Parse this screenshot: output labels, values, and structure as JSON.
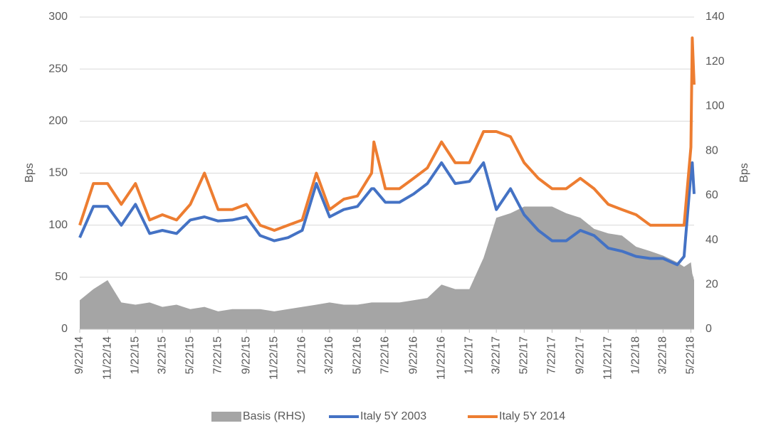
{
  "chart_data": {
    "type": "line",
    "y_label": "Bps",
    "y2_label": "Bps",
    "x": [
      "9/22/14",
      "10/22/14",
      "11/22/14",
      "12/22/14",
      "1/22/15",
      "2/22/15",
      "3/22/15",
      "4/22/15",
      "5/22/15",
      "6/22/15",
      "7/22/15",
      "8/22/15",
      "9/22/15",
      "10/22/15",
      "11/22/15",
      "12/22/15",
      "1/22/16",
      "2/22/16",
      "3/22/16",
      "4/22/16",
      "5/22/16",
      "6/22/16",
      "6/27/16",
      "7/22/16",
      "8/22/16",
      "9/22/16",
      "10/22/16",
      "11/22/16",
      "12/22/16",
      "1/22/17",
      "2/22/17",
      "3/22/17",
      "4/22/17",
      "5/22/17",
      "6/22/17",
      "7/22/17",
      "8/22/17",
      "9/22/17",
      "10/22/17",
      "11/22/17",
      "12/22/17",
      "1/22/18",
      "2/22/18",
      "3/22/18",
      "4/22/18",
      "5/7/18",
      "5/22/18",
      "5/25/18",
      "5/29/18"
    ],
    "xlim": [
      "9/22/14",
      "5/29/18"
    ],
    "xticks": [
      "9/22/14",
      "11/22/14",
      "1/22/15",
      "3/22/15",
      "5/22/15",
      "7/22/15",
      "9/22/15",
      "11/22/15",
      "1/22/16",
      "3/22/16",
      "5/22/16",
      "7/22/16",
      "9/22/16",
      "11/22/16",
      "1/22/17",
      "3/22/17",
      "5/22/17",
      "7/22/17",
      "9/22/17",
      "11/22/17",
      "1/22/18",
      "3/22/18",
      "5/22/18"
    ],
    "ylim": [
      0,
      300
    ],
    "yticks": [
      0,
      50,
      100,
      150,
      200,
      250,
      300
    ],
    "y2lim": [
      0,
      140
    ],
    "y2ticks": [
      0,
      20,
      40,
      60,
      80,
      100,
      120,
      140
    ],
    "grid": true,
    "legend": "bottom",
    "series": [
      {
        "name": "Basis (RHS)",
        "type": "area",
        "axis": "y2",
        "color": "#a5a5a5",
        "values": [
          13,
          18,
          22,
          12,
          11,
          12,
          10,
          11,
          9,
          10,
          8,
          9,
          9,
          9,
          8,
          9,
          10,
          11,
          12,
          11,
          11,
          12,
          12,
          12,
          12,
          13,
          14,
          20,
          18,
          18,
          32,
          50,
          52,
          55,
          55,
          55,
          52,
          50,
          45,
          43,
          42,
          37,
          35,
          33,
          30,
          28,
          30,
          25,
          22
        ]
      },
      {
        "name": "Italy 5Y 2003",
        "type": "line",
        "color": "#4472c4",
        "values": [
          88,
          118,
          118,
          100,
          120,
          92,
          95,
          92,
          105,
          108,
          104,
          105,
          108,
          90,
          85,
          88,
          95,
          140,
          108,
          115,
          118,
          135,
          135,
          122,
          122,
          130,
          140,
          160,
          140,
          142,
          160,
          115,
          135,
          110,
          95,
          85,
          85,
          95,
          90,
          78,
          75,
          70,
          68,
          68,
          62,
          70,
          150,
          160,
          130
        ]
      },
      {
        "name": "Italy 5Y 2014",
        "type": "line",
        "color": "#ed7d31",
        "values": [
          100,
          140,
          140,
          120,
          140,
          105,
          110,
          105,
          120,
          150,
          115,
          115,
          120,
          100,
          95,
          100,
          105,
          150,
          115,
          125,
          128,
          150,
          180,
          135,
          135,
          145,
          155,
          180,
          160,
          160,
          190,
          190,
          185,
          160,
          145,
          135,
          135,
          145,
          135,
          120,
          115,
          110,
          100,
          100,
          100,
          100,
          175,
          280,
          235
        ]
      }
    ]
  }
}
